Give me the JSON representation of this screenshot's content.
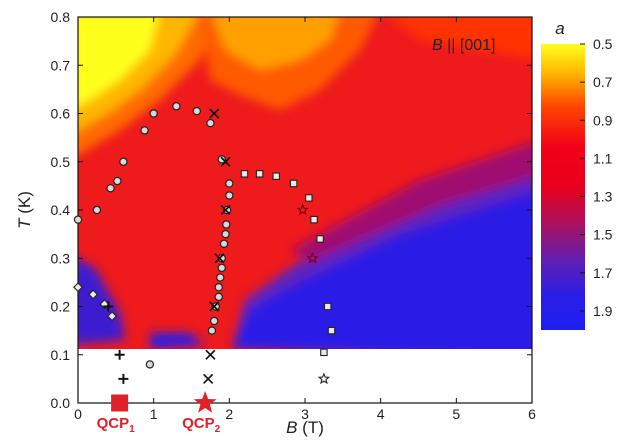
{
  "chart_data": {
    "type": "heatmap",
    "xlabel_symbol": "B",
    "xlabel_unit": "(T)",
    "ylabel_symbol": "T",
    "ylabel_unit": "(K)",
    "xlim": [
      0,
      6
    ],
    "ylim": [
      0,
      0.8
    ],
    "x_ticks": [
      "0",
      "1",
      "2",
      "3",
      "4",
      "5",
      "6"
    ],
    "y_ticks": [
      "0.0",
      "0.1",
      "0.2",
      "0.3",
      "0.4",
      "0.5",
      "0.6",
      "0.7",
      "0.8"
    ],
    "annotation_symbol": "B",
    "annotation_rest": " || [001]",
    "colorbar": {
      "label": "a",
      "range": [
        0.5,
        2.0
      ],
      "ticks": [
        "0.5",
        "0.7",
        "0.9",
        "1.1",
        "1.3",
        "1.5",
        "1.7",
        "1.9"
      ],
      "tick_values": [
        0.5,
        0.7,
        0.9,
        1.1,
        1.3,
        1.5,
        1.7,
        1.9
      ]
    },
    "heatmap_lower_T_cutoff": 0.085,
    "series": [
      {
        "marker": "open-circle",
        "points": [
          [
            0.0,
            0.38
          ],
          [
            0.25,
            0.4
          ],
          [
            0.43,
            0.445
          ],
          [
            0.52,
            0.46
          ],
          [
            0.6,
            0.5
          ],
          [
            0.88,
            0.565
          ],
          [
            1.0,
            0.6
          ],
          [
            1.3,
            0.615
          ],
          [
            1.57,
            0.605
          ],
          [
            1.75,
            0.58
          ],
          [
            1.9,
            0.505
          ],
          [
            2.0,
            0.455
          ],
          [
            2.0,
            0.43
          ],
          [
            1.97,
            0.4
          ],
          [
            1.96,
            0.37
          ],
          [
            1.95,
            0.35
          ],
          [
            1.93,
            0.33
          ],
          [
            1.9,
            0.3
          ],
          [
            1.9,
            0.28
          ],
          [
            1.88,
            0.26
          ],
          [
            1.86,
            0.24
          ],
          [
            1.86,
            0.22
          ],
          [
            1.82,
            0.2
          ],
          [
            1.8,
            0.17
          ],
          [
            1.77,
            0.15
          ],
          [
            0.95,
            0.08
          ]
        ]
      },
      {
        "marker": "open-square",
        "points": [
          [
            2.2,
            0.475
          ],
          [
            2.4,
            0.475
          ],
          [
            2.62,
            0.47
          ],
          [
            2.85,
            0.455
          ],
          [
            3.05,
            0.425
          ],
          [
            3.12,
            0.38
          ],
          [
            3.2,
            0.34
          ],
          [
            3.3,
            0.2
          ],
          [
            3.35,
            0.15
          ],
          [
            3.25,
            0.105
          ]
        ]
      },
      {
        "marker": "open-diamond",
        "points": [
          [
            0.0,
            0.24
          ],
          [
            0.2,
            0.225
          ],
          [
            0.35,
            0.205
          ],
          [
            0.45,
            0.18
          ]
        ]
      },
      {
        "marker": "open-star",
        "points": [
          [
            2.97,
            0.4
          ],
          [
            3.1,
            0.3
          ],
          [
            3.25,
            0.05
          ]
        ]
      },
      {
        "marker": "cross",
        "points": [
          [
            1.8,
            0.6
          ],
          [
            1.95,
            0.5
          ],
          [
            1.95,
            0.4
          ],
          [
            1.87,
            0.3
          ],
          [
            1.8,
            0.2
          ],
          [
            1.75,
            0.1
          ],
          [
            1.72,
            0.05
          ]
        ]
      },
      {
        "marker": "plus",
        "points": [
          [
            0.4,
            0.2
          ],
          [
            0.55,
            0.1
          ],
          [
            0.6,
            0.05
          ]
        ]
      }
    ],
    "qcp": [
      {
        "label": "QCP",
        "sub": "1",
        "B": 0.55,
        "marker": "filled-square",
        "color": "#e0202a"
      },
      {
        "label": "QCP",
        "sub": "2",
        "B": 1.68,
        "marker": "filled-star",
        "color": "#e0202a"
      }
    ]
  }
}
